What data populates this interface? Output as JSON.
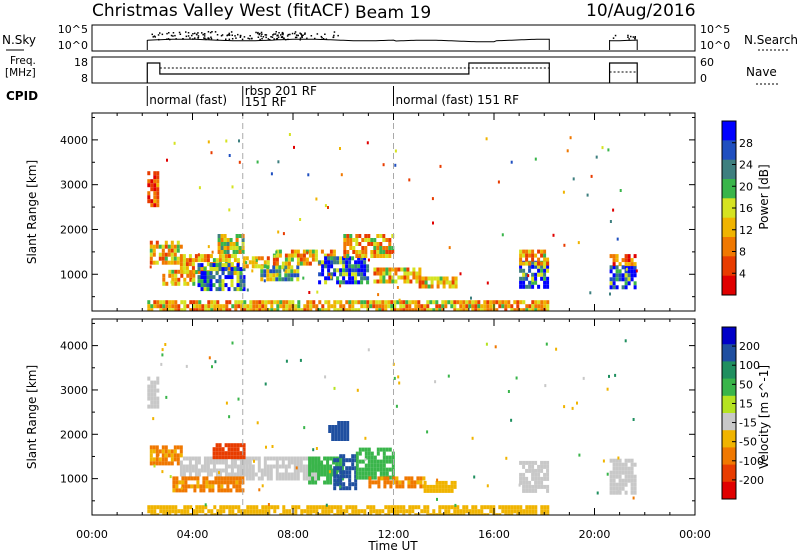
{
  "header": {
    "title": "Christmas Valley West (fitACF)",
    "beam": "Beam 19",
    "date": "10/Aug/2016"
  },
  "nsky_panel": {
    "left_label": "N.Sky",
    "right_label": "N.Search",
    "left_ticks": [
      "10^5",
      "10^0"
    ],
    "right_ticks": [
      "10^5",
      "10^0"
    ]
  },
  "freq_panel": {
    "left_label_line1": "Freq.",
    "left_label_line2": "[MHz]",
    "right_label": "Nave",
    "left_ticks": [
      "18",
      "8"
    ],
    "right_ticks": [
      "60",
      "0"
    ]
  },
  "cpid": {
    "label": "CPID",
    "segments": [
      {
        "start_h": 2.2,
        "text": "normal (fast)"
      },
      {
        "start_h": 6.0,
        "text": "rbsp 201 RF",
        "text2": "151 RF"
      },
      {
        "start_h": 12.0,
        "text": "normal (fast) 151 RF"
      }
    ]
  },
  "time_axis": {
    "label": "Time UT",
    "tick_labels": [
      "00:00",
      "04:00",
      "08:00",
      "12:00",
      "16:00",
      "20:00",
      "00:00"
    ]
  },
  "chart_data": [
    {
      "type": "heatmap",
      "parameter": "Power",
      "ylabel": "Slant Range [km]",
      "yticks": [
        1000,
        2000,
        3000,
        4000
      ],
      "ylim": [
        180,
        4600
      ],
      "xlim_hours": [
        0,
        24
      ],
      "colorbar": {
        "label": "Power [dB]",
        "ticks": [
          "4",
          "8",
          "12",
          "16",
          "20",
          "24",
          "28"
        ],
        "colors": [
          "#0000ff",
          "#1f4fc0",
          "#3e7f7f",
          "#39b54a",
          "#d5e321",
          "#f0b400",
          "#f07800",
          "#e83c00",
          "#e00000"
        ]
      },
      "regions": [
        {
          "t0": 2.3,
          "t1": 3.5,
          "r0": 1300,
          "r1": 1750,
          "value": 12
        },
        {
          "t0": 3.5,
          "t1": 5.8,
          "r0": 1050,
          "r1": 1450,
          "value": 12
        },
        {
          "t0": 4.2,
          "t1": 6.0,
          "r0": 700,
          "r1": 1250,
          "value": 24
        },
        {
          "t0": 2.8,
          "t1": 4.0,
          "r0": 800,
          "r1": 1100,
          "value": 12
        },
        {
          "t0": 5.0,
          "t1": 6.0,
          "r0": 1500,
          "r1": 1900,
          "value": 16
        },
        {
          "t0": 6.0,
          "t1": 7.0,
          "r0": 1150,
          "r1": 1400,
          "value": 12
        },
        {
          "t0": 6.7,
          "t1": 8.2,
          "r0": 900,
          "r1": 1200,
          "value": 20
        },
        {
          "t0": 7.2,
          "t1": 9.6,
          "r0": 1250,
          "r1": 1550,
          "value": 12
        },
        {
          "t0": 9.0,
          "t1": 11.0,
          "r0": 800,
          "r1": 1400,
          "value": 26
        },
        {
          "t0": 10.0,
          "t1": 12.0,
          "r0": 1400,
          "r1": 1900,
          "value": 12
        },
        {
          "t0": 11.2,
          "t1": 13.0,
          "r0": 850,
          "r1": 1150,
          "value": 12
        },
        {
          "t0": 13.0,
          "t1": 14.5,
          "r0": 750,
          "r1": 950,
          "value": 12
        },
        {
          "t0": 17.0,
          "t1": 18.1,
          "r0": 700,
          "r1": 1300,
          "value": 26
        },
        {
          "t0": 17.0,
          "t1": 18.1,
          "r0": 1250,
          "r1": 1550,
          "value": 12
        },
        {
          "t0": 20.6,
          "t1": 21.6,
          "r0": 750,
          "r1": 1200,
          "value": 26
        },
        {
          "t0": 20.6,
          "t1": 21.6,
          "r0": 1200,
          "r1": 1450,
          "value": 8
        },
        {
          "t0": 2.2,
          "t1": 18.2,
          "r0": 200,
          "r1": 420,
          "value": 12
        },
        {
          "t0": 2.2,
          "t1": 2.6,
          "r0": 2500,
          "r1": 3300,
          "value": 6
        }
      ]
    },
    {
      "type": "heatmap",
      "parameter": "Velocity",
      "ylabel": "Slant Range [km]",
      "yticks": [
        1000,
        2000,
        3000,
        4000
      ],
      "ylim": [
        180,
        4600
      ],
      "xlim_hours": [
        0,
        24
      ],
      "colorbar": {
        "label": "Velocity [m s^-1]",
        "ticks": [
          "200",
          "100",
          "50",
          "15",
          "-15",
          "-50",
          "-100",
          "-200"
        ],
        "colors": [
          "#0000c8",
          "#1f4fa0",
          "#1f8f5f",
          "#39b54a",
          "#b5e321",
          "#c8c8c8",
          "#f0b400",
          "#f07800",
          "#e83c00",
          "#e00000"
        ]
      },
      "regions": [
        {
          "t0": 2.3,
          "t1": 3.6,
          "r0": 1300,
          "r1": 1750,
          "value": -60
        },
        {
          "t0": 3.5,
          "t1": 6.2,
          "r0": 1050,
          "r1": 1500,
          "value": -5
        },
        {
          "t0": 4.8,
          "t1": 6.0,
          "r0": 1450,
          "r1": 1800,
          "value": -150
        },
        {
          "t0": 3.2,
          "t1": 6.0,
          "r0": 700,
          "r1": 1050,
          "value": -60
        },
        {
          "t0": 6.0,
          "t1": 9.0,
          "r0": 1000,
          "r1": 1500,
          "value": -5
        },
        {
          "t0": 8.6,
          "t1": 10.0,
          "r0": 900,
          "r1": 1500,
          "value": 30
        },
        {
          "t0": 9.6,
          "t1": 10.5,
          "r0": 800,
          "r1": 1550,
          "value": 150
        },
        {
          "t0": 9.4,
          "t1": 10.2,
          "r0": 1900,
          "r1": 2300,
          "value": 150
        },
        {
          "t0": 10.5,
          "t1": 12.0,
          "r0": 1000,
          "r1": 1700,
          "value": 30
        },
        {
          "t0": 11.0,
          "t1": 13.2,
          "r0": 800,
          "r1": 1050,
          "value": -60
        },
        {
          "t0": 13.2,
          "t1": 14.5,
          "r0": 750,
          "r1": 950,
          "value": -30
        },
        {
          "t0": 17.0,
          "t1": 18.1,
          "r0": 700,
          "r1": 1400,
          "value": -5
        },
        {
          "t0": 20.6,
          "t1": 21.6,
          "r0": 700,
          "r1": 1450,
          "value": -5
        },
        {
          "t0": 2.2,
          "t1": 18.2,
          "r0": 200,
          "r1": 400,
          "value": -30
        },
        {
          "t0": 2.2,
          "t1": 2.6,
          "r0": 2600,
          "r1": 3300,
          "value": -5
        }
      ]
    }
  ]
}
